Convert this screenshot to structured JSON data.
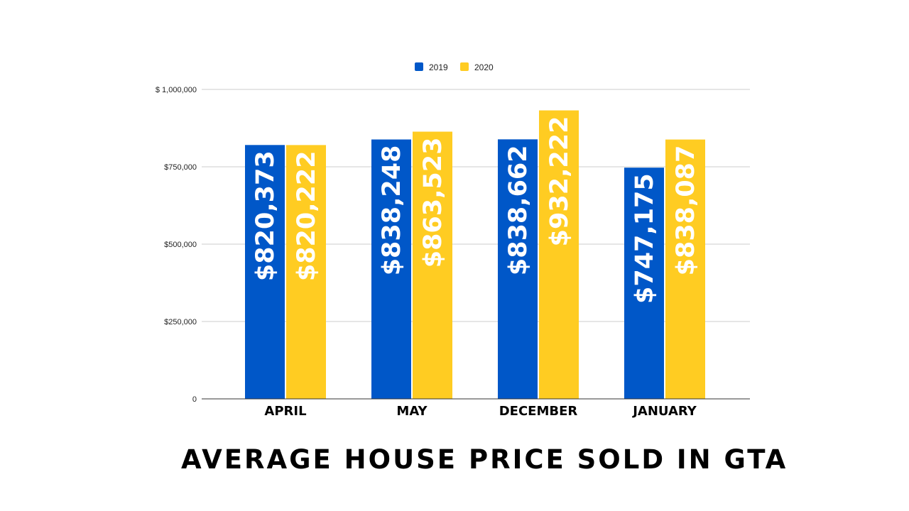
{
  "chart_data": {
    "type": "bar",
    "title": "AVERAGE HOUSE PRICE SOLD IN GTA",
    "categories": [
      "APRIL",
      "MAY",
      "DECEMBER",
      "JANUARY"
    ],
    "series": [
      {
        "name": "2019",
        "color": "#0057c8",
        "values": [
          820373,
          838248,
          838662,
          747175
        ],
        "labels": [
          "$820,373",
          "$838,248",
          "$838,662",
          "$747,175"
        ]
      },
      {
        "name": "2020",
        "color": "#ffcc22",
        "values": [
          820222,
          863523,
          932222,
          838087
        ],
        "labels": [
          "$820,222",
          "$863,523",
          "$932,222",
          "$838,087"
        ]
      }
    ],
    "ylim": [
      0,
      1000000
    ],
    "yticks": [
      {
        "value": 0,
        "label": "0"
      },
      {
        "value": 250000,
        "label": "$250,000"
      },
      {
        "value": 500000,
        "label": "$500,000"
      },
      {
        "value": 750000,
        "label": "$750,000"
      },
      {
        "value": 1000000,
        "label": "$ 1,000,000"
      }
    ],
    "grid": true,
    "legend_position": "top-center",
    "xlabel": "",
    "ylabel": ""
  }
}
